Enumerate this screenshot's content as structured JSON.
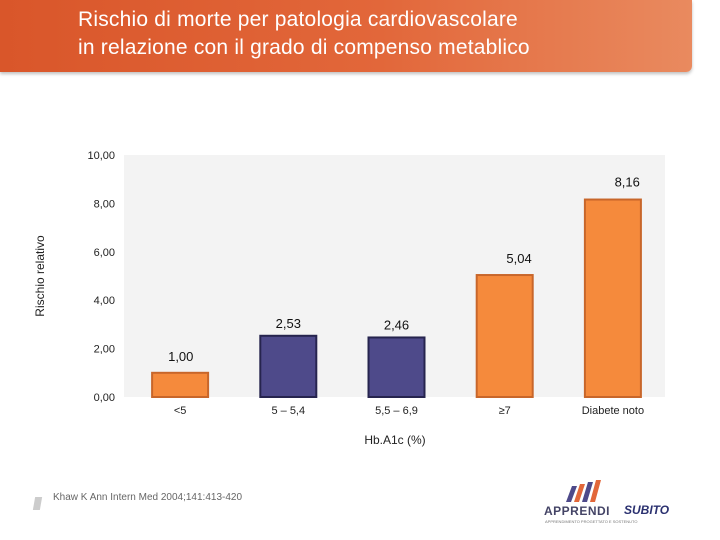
{
  "header": {
    "title_line1": "Rischio di morte per patologia cardiovascolare",
    "title_line2": "in relazione con il grado di compenso metablico"
  },
  "chart_data": {
    "type": "bar",
    "title": "Rischio di morte per patologia cardiovascolare in relazione con il grado di compenso metablico",
    "xlabel": "Hb.A1c (%)",
    "ylabel": "Rischio relativo",
    "ylim": [
      0,
      10
    ],
    "yticks": [
      "0,00",
      "2,00",
      "4,00",
      "6,00",
      "8,00",
      "10,00"
    ],
    "categories": [
      "<5",
      "5 – 5,4",
      "5,5 – 6,9",
      "≥7",
      "Diabete noto"
    ],
    "values": [
      1.0,
      2.53,
      2.46,
      5.04,
      8.16
    ],
    "value_labels": [
      "1,00",
      "2,53",
      "2,46",
      "5,04",
      "8,16"
    ],
    "colors": [
      "#f58a3c",
      "#4e4a8a",
      "#4e4a8a",
      "#f58a3c",
      "#f58a3c"
    ],
    "border_colors": [
      "#c8662a",
      "#26244e",
      "#26244e",
      "#c8662a",
      "#c8662a"
    ],
    "grid": false,
    "plot_background": "#f3f3f3"
  },
  "footer": {
    "citation": "Khaw K Ann Intern Med 2004;141:413-420",
    "logo_text": "APPRENDI",
    "logo_subtext": "APPRENDIMENTO PROGETTATO E SOSTENUTO",
    "logo_brand": "SUBITO"
  }
}
